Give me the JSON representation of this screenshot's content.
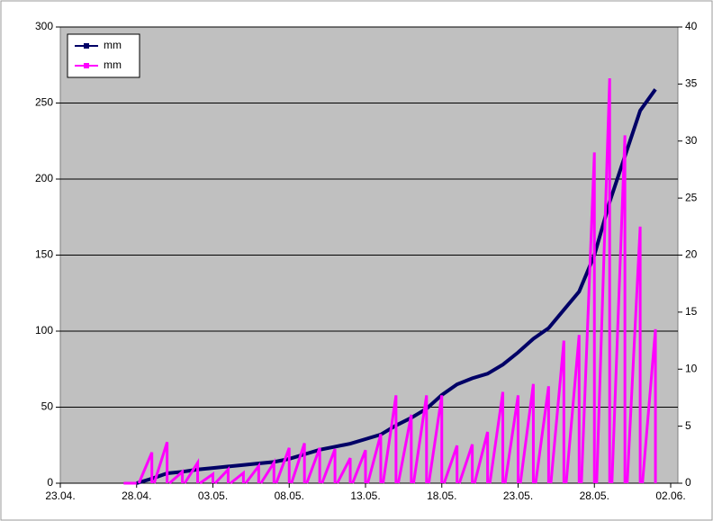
{
  "chart_data": {
    "type": "line",
    "x": [
      "28.04.",
      "29.04.",
      "30.04.",
      "01.05.",
      "02.05.",
      "03.05.",
      "04.05.",
      "05.05.",
      "06.05.",
      "07.05.",
      "08.05.",
      "09.05.",
      "10.05.",
      "11.05.",
      "12.05.",
      "13.05.",
      "14.05.",
      "15.05.",
      "16.05.",
      "17.05.",
      "18.05.",
      "19.05.",
      "20.05.",
      "21.05.",
      "22.05.",
      "23.05.",
      "24.05.",
      "25.05.",
      "26.05.",
      "27.05.",
      "28.05.",
      "29.05.",
      "30.05.",
      "31.05.",
      "01.06."
    ],
    "series": [
      {
        "name": "mm",
        "color": "#000066",
        "values": [
          0,
          3,
          6.5,
          7.5,
          9,
          10,
          11,
          12,
          13,
          14,
          16,
          19,
          22,
          24,
          26,
          29,
          32,
          38,
          43,
          49,
          58,
          65,
          69,
          72,
          78,
          86,
          95,
          102,
          114,
          126,
          150,
          185,
          215,
          245,
          259
        ]
      },
      {
        "name": "mm",
        "color": "#ff00ff",
        "axis": "y2",
        "values": [
          0,
          2.7,
          3.6,
          1.0,
          1.8,
          0.8,
          1.2,
          0.9,
          1.5,
          1.8,
          3.1,
          3.5,
          3.1,
          3.0,
          2.2,
          2.9,
          4.3,
          7.7,
          6.0,
          7.7,
          7.7,
          3.3,
          3.4,
          4.5,
          8.0,
          7.7,
          8.7,
          8.5,
          12.5,
          13.0,
          29.0,
          35.5,
          30.5,
          22.5,
          13.5
        ]
      }
    ],
    "xlim": [
      "23.04.",
      "02.06."
    ],
    "xticks": [
      "23.04.",
      "28.04.",
      "03.05.",
      "08.05.",
      "13.05.",
      "18.05.",
      "23.05.",
      "28.05.",
      "02.06."
    ],
    "ylim": [
      0,
      300
    ],
    "yticks": [
      0,
      50,
      100,
      150,
      200,
      250,
      300
    ],
    "y2lim": [
      0,
      40
    ],
    "y2ticks": [
      0,
      5,
      10,
      15,
      20,
      25,
      30,
      35,
      40
    ],
    "grid": true,
    "legend": "top-left"
  }
}
